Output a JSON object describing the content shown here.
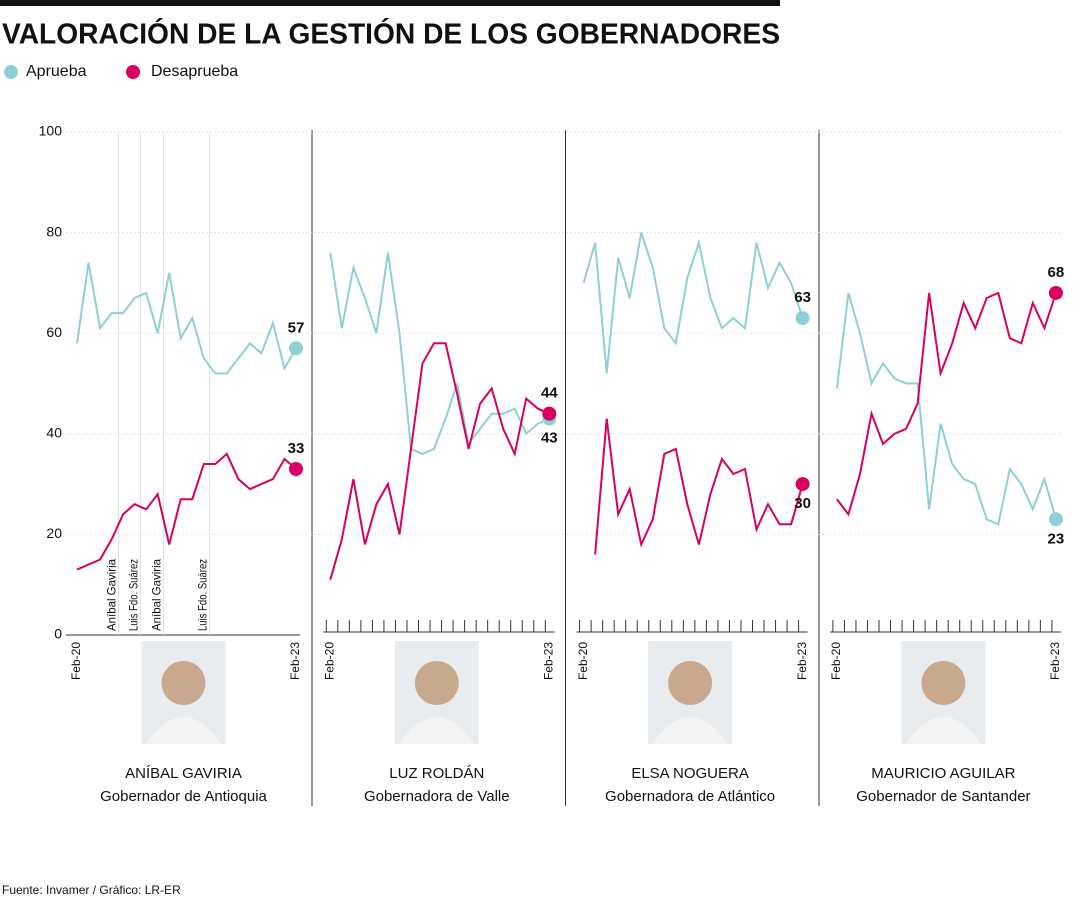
{
  "title": "VALORACIÓN DE LA GESTIÓN DE LOS GOBERNADORES",
  "source": "Fuente: Invamer / Gráfico: LR-ER",
  "chart_data": [
    {
      "type": "line",
      "name": "ANÍBAL GAVIRIA",
      "subtitle": "Gobernador de Antioquia",
      "categories": [
        "Feb-20",
        null,
        null,
        null,
        null,
        null,
        null,
        null,
        null,
        null,
        null,
        null,
        null,
        null,
        null,
        null,
        null,
        null,
        null,
        "Feb-23"
      ],
      "series": [
        {
          "name": "Aprueba",
          "color": "#8fd0d5",
          "values": [
            58,
            74,
            61,
            64,
            64,
            67,
            68,
            60,
            72,
            59,
            63,
            55,
            52,
            52,
            55,
            58,
            56,
            62,
            53,
            57
          ]
        },
        {
          "name": "Desaprueba",
          "color": "#d9005f",
          "values": [
            13,
            14,
            15,
            19,
            24,
            26,
            25,
            28,
            18,
            27,
            27,
            34,
            34,
            36,
            31,
            29,
            30,
            31,
            35,
            33
          ]
        }
      ],
      "annotations": [
        {
          "text": "Aníbal Gaviria",
          "x": 3.6
        },
        {
          "text": "Luis Fdo. Suárez",
          "x": 5.5
        },
        {
          "text": "Aníbal Gaviria",
          "x": 7.5
        },
        {
          "text": "Luis Fdo. Suárez",
          "x": 11.5
        }
      ],
      "ylim": [
        0,
        100
      ],
      "yticks": [
        0,
        20,
        40,
        60,
        80,
        100
      ],
      "grid": true
    },
    {
      "type": "line",
      "name": "LUZ ROLDÁN",
      "subtitle": "Gobernadora de Valle",
      "categories": [
        "Feb-20",
        null,
        null,
        null,
        null,
        null,
        null,
        null,
        null,
        null,
        null,
        null,
        null,
        null,
        null,
        null,
        null,
        null,
        null,
        "Feb-23"
      ],
      "series": [
        {
          "color": "#8fd0d5",
          "values": [
            76,
            61,
            73,
            67,
            60,
            76,
            60,
            37,
            36,
            37,
            43,
            50,
            38,
            41,
            44,
            44,
            45,
            40,
            42,
            43
          ]
        },
        {
          "color": "#d9005f",
          "values": [
            11,
            19,
            31,
            18,
            26,
            30,
            20,
            37,
            54,
            58,
            58,
            48,
            37,
            46,
            49,
            41,
            36,
            47,
            45,
            44
          ]
        }
      ],
      "ylim": [
        0,
        100
      ]
    },
    {
      "type": "line",
      "name": "ELSA NOGUERA",
      "subtitle": "Gobernadora de Atlántico",
      "categories": [
        "Feb-20",
        null,
        null,
        null,
        null,
        null,
        null,
        null,
        null,
        null,
        null,
        null,
        null,
        null,
        null,
        null,
        null,
        null,
        null,
        "Feb-23"
      ],
      "series": [
        {
          "color": "#8fd0d5",
          "values": [
            70,
            78,
            52,
            75,
            67,
            80,
            73,
            61,
            58,
            71,
            78,
            67,
            61,
            63,
            61,
            78,
            69,
            74,
            70,
            63
          ]
        },
        {
          "color": "#d9005f",
          "values": [
            null,
            16,
            43,
            24,
            29,
            18,
            23,
            36,
            37,
            26,
            18,
            28,
            35,
            32,
            33,
            21,
            26,
            22,
            22,
            30
          ]
        }
      ],
      "ylim": [
        0,
        100
      ]
    },
    {
      "type": "line",
      "name": "MAURICIO AGUILAR",
      "subtitle": "Gobernador de Santander",
      "categories": [
        "Feb-20",
        null,
        null,
        null,
        null,
        null,
        null,
        null,
        null,
        null,
        null,
        null,
        null,
        null,
        null,
        null,
        null,
        null,
        null,
        "Feb-23"
      ],
      "series": [
        {
          "color": "#8fd0d5",
          "values": [
            49,
            68,
            60,
            50,
            54,
            51,
            50,
            50,
            25,
            42,
            34,
            31,
            30,
            23,
            22,
            33,
            30,
            25,
            31,
            23
          ]
        },
        {
          "color": "#d9005f",
          "values": [
            27,
            24,
            32,
            44,
            38,
            40,
            41,
            46,
            68,
            52,
            58,
            66,
            61,
            67,
            68,
            59,
            58,
            66,
            61,
            68
          ]
        }
      ],
      "ylim": [
        0,
        100
      ]
    }
  ]
}
